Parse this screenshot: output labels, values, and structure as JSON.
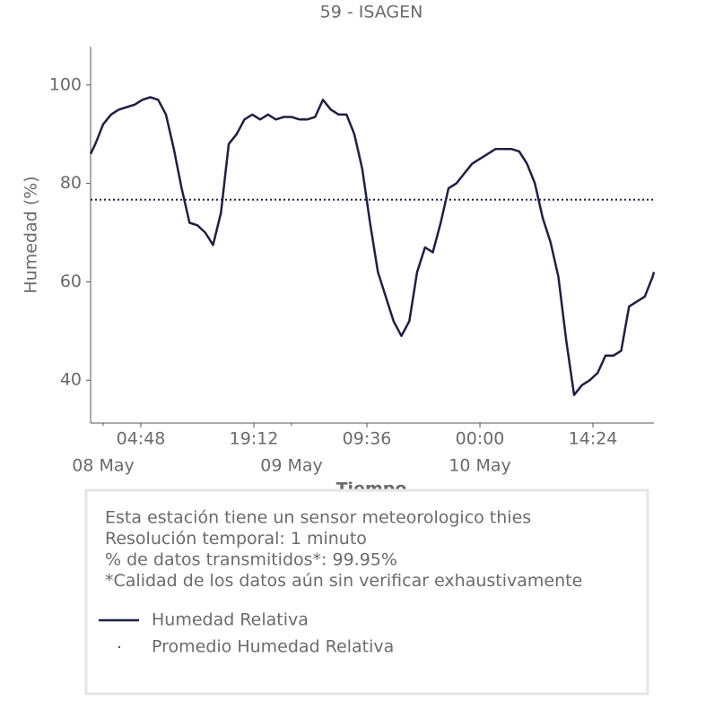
{
  "chart_data": {
    "type": "line",
    "title": "59 - ISAGEN",
    "ylabel": "Humedad (%)",
    "xlabel": "Tiempo",
    "x": [
      "07 May 22:24",
      "07 May 23:00",
      "08 May 00:00",
      "08 May 01:00",
      "08 May 02:00",
      "08 May 03:00",
      "08 May 04:00",
      "08 May 05:00",
      "08 May 06:00",
      "08 May 07:00",
      "08 May 08:00",
      "08 May 09:00",
      "08 May 10:00",
      "08 May 11:00",
      "08 May 12:00",
      "08 May 13:00",
      "08 May 14:00",
      "08 May 15:00",
      "08 May 16:00",
      "08 May 17:00",
      "08 May 18:00",
      "08 May 19:00",
      "08 May 20:00",
      "08 May 21:00",
      "08 May 22:00",
      "08 May 23:00",
      "09 May 00:00",
      "09 May 01:00",
      "09 May 02:00",
      "09 May 03:00",
      "09 May 04:00",
      "09 May 05:00",
      "09 May 06:00",
      "09 May 07:00",
      "09 May 08:00",
      "09 May 09:00",
      "09 May 10:00",
      "09 May 11:00",
      "09 May 12:00",
      "09 May 13:00",
      "09 May 14:00",
      "09 May 15:00",
      "09 May 16:00",
      "09 May 17:00",
      "09 May 18:00",
      "09 May 19:00",
      "09 May 20:00",
      "09 May 21:00",
      "09 May 22:00",
      "09 May 23:00",
      "10 May 00:00",
      "10 May 01:00",
      "10 May 02:00",
      "10 May 03:00",
      "10 May 04:00",
      "10 May 05:00",
      "10 May 06:00",
      "10 May 07:00",
      "10 May 08:00",
      "10 May 09:00",
      "10 May 10:00",
      "10 May 11:00",
      "10 May 12:00",
      "10 May 13:00",
      "10 May 14:00",
      "10 May 15:00",
      "10 May 16:00",
      "10 May 17:00",
      "10 May 18:00",
      "10 May 19:00",
      "10 May 20:00",
      "10 May 21:00",
      "10 May 22:00",
      "10 May 22:10"
    ],
    "series": [
      {
        "name": "Humedad Relativa",
        "color": "#1f1f45",
        "values": [
          86,
          88,
          92,
          94,
          95,
          95.5,
          96,
          97,
          97.5,
          97,
          94,
          87,
          79,
          72,
          71.5,
          70,
          67.5,
          74,
          88,
          90,
          93,
          94,
          93,
          94,
          93,
          93.5,
          93.5,
          93,
          93,
          93.5,
          97,
          95,
          94,
          94,
          90,
          83,
          72,
          62,
          57,
          52,
          49,
          52,
          62,
          67,
          66,
          72,
          79,
          80,
          82,
          84,
          85,
          86,
          87,
          87,
          87,
          86.5,
          84,
          80,
          73,
          68,
          61,
          48,
          37,
          39,
          40,
          41.5,
          45,
          45,
          46,
          55,
          56,
          57,
          61,
          62
        ]
      }
    ],
    "mean": {
      "name": "Promedio Humedad Relativa",
      "color": "#1f1f45",
      "value": 76.7
    },
    "xlim": [
      "07 May 22:24",
      "10 May 22:10"
    ],
    "xticks": [
      {
        "value": "08 May 04:48",
        "label": "04:48"
      },
      {
        "value": "08 May 19:12",
        "label": "19:12"
      },
      {
        "value": "09 May 09:36",
        "label": "09:36"
      },
      {
        "value": "10 May 00:00",
        "label": "00:00"
      },
      {
        "value": "10 May 14:24",
        "label": "14:24"
      }
    ],
    "xticks_minor": [
      {
        "value": "08 May 00:00",
        "label": "08 May"
      },
      {
        "value": "09 May 00:00",
        "label": "09 May"
      },
      {
        "value": "10 May 00:00",
        "label": "10 May"
      }
    ],
    "ylim": [
      31.3,
      107.8
    ],
    "yticks": [
      40,
      60,
      80,
      100
    ],
    "notes": [
      "Esta estación tiene un sensor meteorologico thies",
      "Resolución temporal: 1 minuto",
      "% de datos transmitidos*: 99.95%",
      "*Calidad de los datos aún sin verificar exhaustivamente"
    ]
  }
}
